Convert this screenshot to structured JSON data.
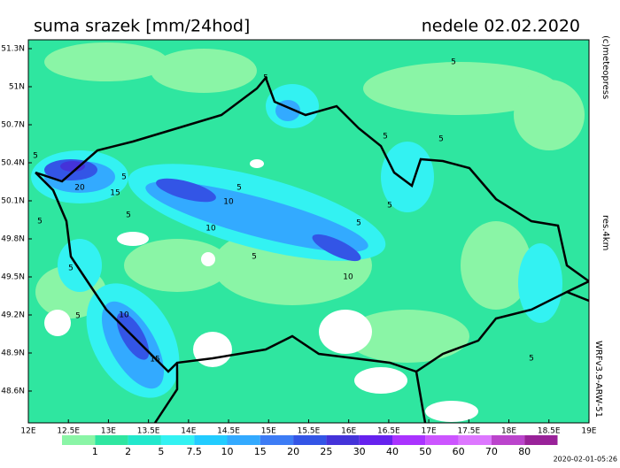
{
  "header": {
    "title": "suma srazek [mm/24hod]",
    "date": "nedele 02.02.2020"
  },
  "side": {
    "copyright": "(c)meteopress",
    "resolution": "res.4km",
    "model": "WRFv3.9-ARW-51"
  },
  "latitude_labels": [
    "51.3N",
    "51N",
    "50.7N",
    "50.4N",
    "50.1N",
    "49.8N",
    "49.5N",
    "49.2N",
    "48.9N",
    "48.6N"
  ],
  "longitude_labels": [
    "12E",
    "12.5E",
    "13E",
    "13.5E",
    "14E",
    "14.5E",
    "15E",
    "15.5E",
    "16E",
    "16.5E",
    "17E",
    "17.5E",
    "18E",
    "18.5E",
    "19E"
  ],
  "legend": [
    {
      "label": "1",
      "color": "#8af5a6"
    },
    {
      "label": "2",
      "color": "#2fe6a0"
    },
    {
      "label": "5",
      "color": "#22e8cc"
    },
    {
      "label": "7.5",
      "color": "#33f2f2"
    },
    {
      "label": "10",
      "color": "#22ccff"
    },
    {
      "label": "15",
      "color": "#33aaff"
    },
    {
      "label": "20",
      "color": "#3d7cf5"
    },
    {
      "label": "25",
      "color": "#3355e6"
    },
    {
      "label": "30",
      "color": "#4433d9"
    },
    {
      "label": "40",
      "color": "#6622ee"
    },
    {
      "label": "50",
      "color": "#aa33ff"
    },
    {
      "label": "60",
      "color": "#cc55ff"
    },
    {
      "label": "70",
      "color": "#dd77ff"
    },
    {
      "label": "80",
      "color": "#bb44cc"
    },
    {
      "color": "#992299"
    }
  ],
  "contour_labels": [
    "5",
    "5",
    "5",
    "5",
    "20",
    "15",
    "10",
    "5",
    "5",
    "10",
    "5",
    "5",
    "10",
    "5",
    "5",
    "10",
    "15",
    "5",
    "5",
    "5",
    "5",
    "5"
  ],
  "timestamp": "2020-02-01-05:26"
}
